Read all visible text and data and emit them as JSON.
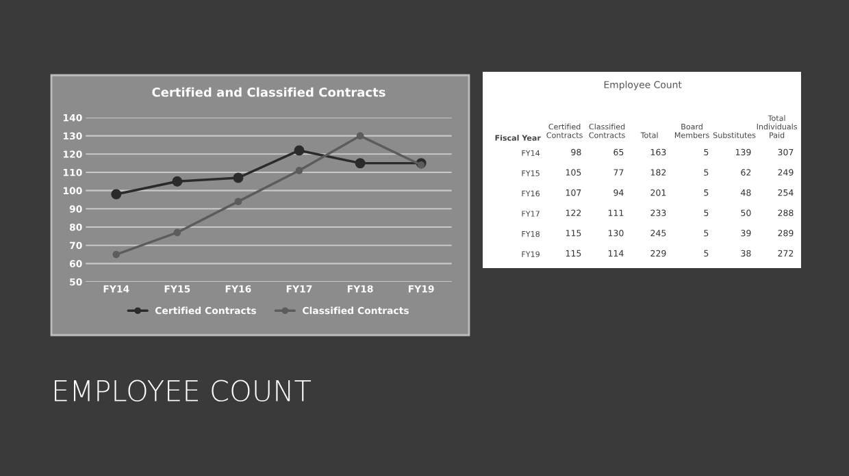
{
  "chart_data": [
    {
      "type": "line",
      "title": "Certified and Classified Contracts",
      "categories": [
        "FY14",
        "FY15",
        "FY16",
        "FY17",
        "FY18",
        "FY19"
      ],
      "series": [
        {
          "name": "Certified Contracts",
          "color": "#2b2b2b",
          "values": [
            98,
            105,
            107,
            122,
            115,
            115
          ]
        },
        {
          "name": "Classified Contracts",
          "color": "#5c5c5c",
          "values": [
            65,
            77,
            94,
            111,
            130,
            114
          ]
        }
      ],
      "ylim": [
        50,
        140
      ],
      "yticks": [
        50,
        60,
        70,
        80,
        90,
        100,
        110,
        120,
        130,
        140
      ],
      "grid": "y",
      "legend": "bottom",
      "marker": "circle",
      "annotations": [
        "EMPLOYEE COUNT"
      ]
    },
    {
      "type": "heatmap",
      "title": "Employee Count",
      "ylabel": "Fiscal Year",
      "data_labels": true,
      "categories": [
        "Certified Contracts",
        "Classified Contracts",
        "Total",
        "Board Members",
        "Substitutes",
        "Total Individuals Paid"
      ],
      "y_categories": [
        "FY14",
        "FY15",
        "FY16",
        "FY17",
        "FY18",
        "FY19"
      ],
      "cells": [
        [
          98,
          65,
          163,
          5,
          139,
          307
        ],
        [
          105,
          77,
          182,
          5,
          62,
          249
        ],
        [
          107,
          94,
          201,
          5,
          48,
          254
        ],
        [
          122,
          111,
          233,
          5,
          50,
          288
        ],
        [
          115,
          130,
          245,
          5,
          39,
          289
        ],
        [
          115,
          114,
          229,
          5,
          38,
          272
        ]
      ]
    }
  ]
}
